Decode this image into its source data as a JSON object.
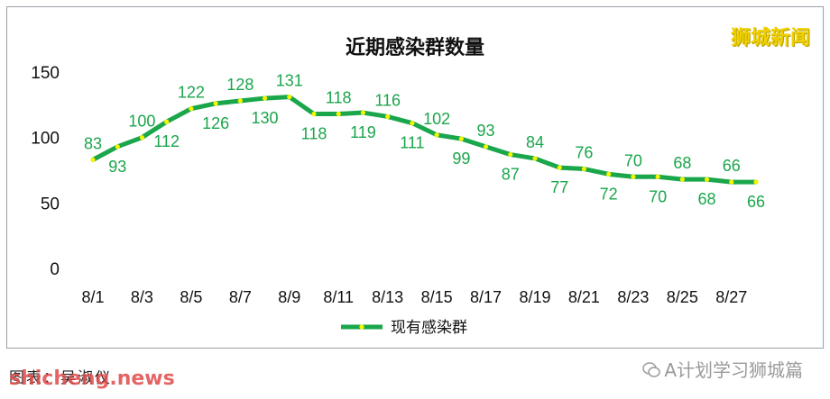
{
  "watermarks": {
    "top_right": "狮城新闻",
    "site": "shicheng.news",
    "wechat": "A计划学习狮城篇"
  },
  "caption": "图表：吴淑仪",
  "chart_data": {
    "type": "line",
    "title": "近期感染群数量",
    "xlabel": "",
    "ylabel": "",
    "ylim": [
      0,
      150
    ],
    "yticks": [
      0,
      50,
      100,
      150
    ],
    "x": [
      "8/1",
      "8/2",
      "8/3",
      "8/4",
      "8/5",
      "8/6",
      "8/7",
      "8/8",
      "8/9",
      "8/10",
      "8/11",
      "8/12",
      "8/13",
      "8/14",
      "8/15",
      "8/16",
      "8/17",
      "8/18",
      "8/19",
      "8/20",
      "8/21",
      "8/22",
      "8/23",
      "8/24",
      "8/25",
      "8/26",
      "8/27",
      "8/28"
    ],
    "xtick_labels": [
      "8/1",
      "8/3",
      "8/5",
      "8/7",
      "8/9",
      "8/11",
      "8/13",
      "8/15",
      "8/17",
      "8/19",
      "8/21",
      "8/23",
      "8/25",
      "8/27"
    ],
    "grid": false,
    "legend_position": "bottom",
    "series": [
      {
        "name": "现有感染群",
        "color": "#1aa64b",
        "marker_color": "#f5f500",
        "values": [
          83,
          93,
          100,
          112,
          122,
          126,
          128,
          130,
          131,
          118,
          118,
          119,
          116,
          111,
          102,
          99,
          93,
          87,
          84,
          77,
          76,
          72,
          70,
          70,
          68,
          68,
          66,
          66
        ]
      }
    ]
  }
}
